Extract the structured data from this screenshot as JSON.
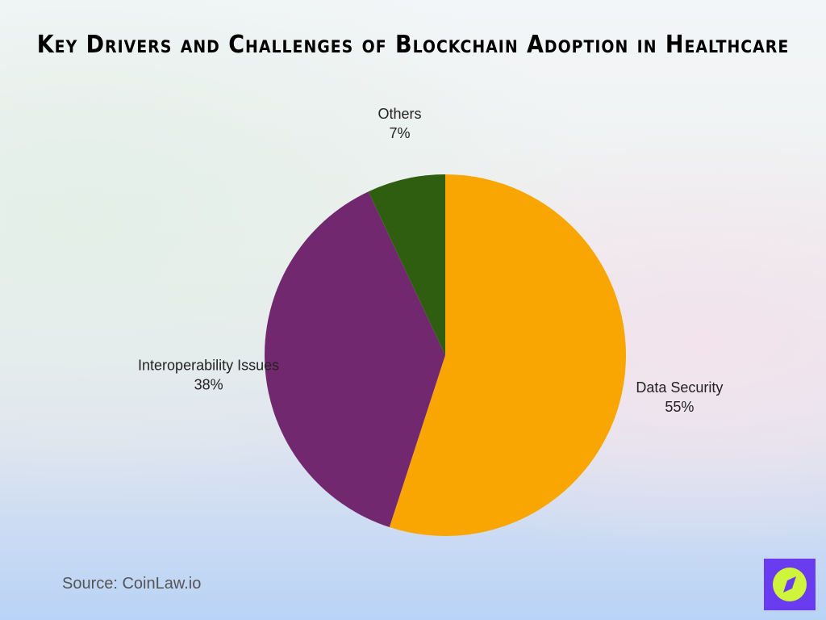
{
  "title": "Key Drivers and Challenges of Blockchain Adoption in Healthcare",
  "source": "Source: CoinLaw.io",
  "logo_icon": "compass-icon",
  "chart_data": {
    "type": "pie",
    "title": "Key Drivers and Challenges of Blockchain Adoption in Healthcare",
    "start": "top, clockwise",
    "slices": [
      {
        "label": "Data Security",
        "value": 55,
        "value_label": "55%",
        "color": "#f9a602"
      },
      {
        "label": "Interoperability Issues",
        "value": 38,
        "value_label": "38%",
        "color": "#72286e"
      },
      {
        "label": "Others",
        "value": 7,
        "value_label": "7%",
        "color": "#2f5e10"
      }
    ]
  }
}
